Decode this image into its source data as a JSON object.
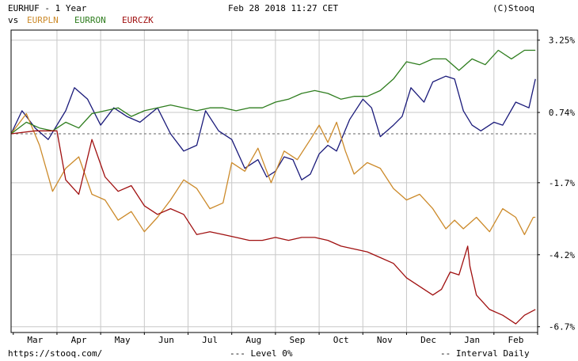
{
  "header": {
    "main_ticker": "EURHUF - 1 Year",
    "vs_label": "vs",
    "compare_tickers": [
      {
        "label": "EURPLN",
        "color": "#cc8a2a"
      },
      {
        "label": "EURRON",
        "color": "#2e7d1e"
      },
      {
        "label": "EURCZK",
        "color": "#a01010"
      }
    ],
    "datetime": "Feb 28 2018 11:27 CET",
    "copyright": "(C)Stooq"
  },
  "footer": {
    "url": "https://stooq.com/",
    "level_legend": "--- Level 0%",
    "interval_legend": "-- Interval Daily"
  },
  "chart_data": {
    "type": "line",
    "title": "EURHUF - 1 Year",
    "x_unit": "months (0 = start of Mar 2017)",
    "x_tick_labels": [
      "Mar",
      "Apr",
      "May",
      "Jun",
      "Jul",
      "Aug",
      "Sep",
      "Oct",
      "Nov",
      "Dec",
      "Jan",
      "Feb"
    ],
    "y_tick_labels": [
      "3.25%",
      "0.74%",
      "-1.7%",
      "-4.2%",
      "-6.7%"
    ],
    "y_ticks": [
      3.25,
      0.74,
      -1.7,
      -4.2,
      -6.7
    ],
    "ylim": [
      -6.9,
      3.6
    ],
    "xlim": [
      -0.05,
      12.0
    ],
    "zero_level": 0,
    "grid": true,
    "series": [
      {
        "name": "EURHUF",
        "color": "#1a1a7a",
        "points": [
          [
            -0.05,
            0
          ],
          [
            0.2,
            0.8
          ],
          [
            0.5,
            0.2
          ],
          [
            0.8,
            -0.2
          ],
          [
            1.2,
            0.8
          ],
          [
            1.4,
            1.6
          ],
          [
            1.7,
            1.2
          ],
          [
            2.0,
            0.3
          ],
          [
            2.3,
            0.9
          ],
          [
            2.6,
            0.6
          ],
          [
            2.9,
            0.4
          ],
          [
            3.3,
            0.9
          ],
          [
            3.6,
            0
          ],
          [
            3.9,
            -0.6
          ],
          [
            4.2,
            -0.4
          ],
          [
            4.4,
            0.8
          ],
          [
            4.7,
            0.1
          ],
          [
            5.0,
            -0.2
          ],
          [
            5.3,
            -1.2
          ],
          [
            5.6,
            -0.9
          ],
          [
            5.8,
            -1.5
          ],
          [
            6.0,
            -1.3
          ],
          [
            6.2,
            -0.8
          ],
          [
            6.4,
            -0.9
          ],
          [
            6.6,
            -1.6
          ],
          [
            6.8,
            -1.4
          ],
          [
            7.0,
            -0.7
          ],
          [
            7.2,
            -0.4
          ],
          [
            7.4,
            -0.6
          ],
          [
            7.7,
            0.5
          ],
          [
            8.0,
            1.2
          ],
          [
            8.2,
            0.9
          ],
          [
            8.4,
            -0.1
          ],
          [
            8.7,
            0.3
          ],
          [
            8.9,
            0.6
          ],
          [
            9.1,
            1.6
          ],
          [
            9.4,
            1.1
          ],
          [
            9.6,
            1.8
          ],
          [
            9.9,
            2.0
          ],
          [
            10.1,
            1.9
          ],
          [
            10.3,
            0.8
          ],
          [
            10.5,
            0.3
          ],
          [
            10.7,
            0.1
          ],
          [
            11.0,
            0.4
          ],
          [
            11.2,
            0.3
          ],
          [
            11.5,
            1.1
          ],
          [
            11.8,
            0.9
          ],
          [
            11.95,
            1.9
          ]
        ]
      },
      {
        "name": "EURPLN",
        "color": "#cc8a2a",
        "points": [
          [
            -0.05,
            0
          ],
          [
            0.3,
            0.7
          ],
          [
            0.6,
            -0.4
          ],
          [
            0.9,
            -2.0
          ],
          [
            1.2,
            -1.2
          ],
          [
            1.5,
            -0.8
          ],
          [
            1.8,
            -2.1
          ],
          [
            2.1,
            -2.3
          ],
          [
            2.4,
            -3.0
          ],
          [
            2.7,
            -2.7
          ],
          [
            3.0,
            -3.4
          ],
          [
            3.3,
            -2.9
          ],
          [
            3.6,
            -2.3
          ],
          [
            3.9,
            -1.6
          ],
          [
            4.2,
            -1.9
          ],
          [
            4.5,
            -2.6
          ],
          [
            4.8,
            -2.4
          ],
          [
            5.0,
            -1.0
          ],
          [
            5.3,
            -1.3
          ],
          [
            5.6,
            -0.5
          ],
          [
            5.9,
            -1.7
          ],
          [
            6.2,
            -0.6
          ],
          [
            6.5,
            -0.9
          ],
          [
            6.8,
            -0.2
          ],
          [
            7.0,
            0.3
          ],
          [
            7.2,
            -0.3
          ],
          [
            7.4,
            0.4
          ],
          [
            7.6,
            -0.6
          ],
          [
            7.8,
            -1.4
          ],
          [
            8.1,
            -1.0
          ],
          [
            8.4,
            -1.2
          ],
          [
            8.7,
            -1.9
          ],
          [
            9.0,
            -2.3
          ],
          [
            9.3,
            -2.1
          ],
          [
            9.6,
            -2.6
          ],
          [
            9.9,
            -3.3
          ],
          [
            10.1,
            -3.0
          ],
          [
            10.3,
            -3.3
          ],
          [
            10.6,
            -2.9
          ],
          [
            10.9,
            -3.4
          ],
          [
            11.2,
            -2.6
          ],
          [
            11.5,
            -2.9
          ],
          [
            11.7,
            -3.5
          ],
          [
            11.9,
            -2.9
          ],
          [
            11.95,
            -2.9
          ]
        ]
      },
      {
        "name": "EURRON",
        "color": "#2e7d1e",
        "points": [
          [
            -0.05,
            0
          ],
          [
            0.3,
            0.4
          ],
          [
            0.6,
            0.2
          ],
          [
            0.9,
            0.1
          ],
          [
            1.2,
            0.4
          ],
          [
            1.5,
            0.2
          ],
          [
            1.8,
            0.7
          ],
          [
            2.1,
            0.8
          ],
          [
            2.4,
            0.9
          ],
          [
            2.7,
            0.6
          ],
          [
            3.0,
            0.8
          ],
          [
            3.3,
            0.9
          ],
          [
            3.6,
            1.0
          ],
          [
            3.9,
            0.9
          ],
          [
            4.2,
            0.8
          ],
          [
            4.5,
            0.9
          ],
          [
            4.8,
            0.9
          ],
          [
            5.1,
            0.8
          ],
          [
            5.4,
            0.9
          ],
          [
            5.7,
            0.9
          ],
          [
            6.0,
            1.1
          ],
          [
            6.3,
            1.2
          ],
          [
            6.6,
            1.4
          ],
          [
            6.9,
            1.5
          ],
          [
            7.2,
            1.4
          ],
          [
            7.5,
            1.2
          ],
          [
            7.8,
            1.3
          ],
          [
            8.1,
            1.3
          ],
          [
            8.4,
            1.5
          ],
          [
            8.7,
            1.9
          ],
          [
            9.0,
            2.5
          ],
          [
            9.3,
            2.4
          ],
          [
            9.6,
            2.6
          ],
          [
            9.9,
            2.6
          ],
          [
            10.2,
            2.2
          ],
          [
            10.5,
            2.6
          ],
          [
            10.8,
            2.4
          ],
          [
            11.1,
            2.9
          ],
          [
            11.4,
            2.6
          ],
          [
            11.7,
            2.9
          ],
          [
            11.95,
            2.9
          ]
        ]
      },
      {
        "name": "EURCZK",
        "color": "#a01010",
        "points": [
          [
            -0.05,
            0
          ],
          [
            0.5,
            0.1
          ],
          [
            1.0,
            0.1
          ],
          [
            1.2,
            -1.6
          ],
          [
            1.5,
            -2.1
          ],
          [
            1.8,
            -0.2
          ],
          [
            2.1,
            -1.5
          ],
          [
            2.4,
            -2.0
          ],
          [
            2.7,
            -1.8
          ],
          [
            3.0,
            -2.5
          ],
          [
            3.3,
            -2.8
          ],
          [
            3.6,
            -2.6
          ],
          [
            3.9,
            -2.8
          ],
          [
            4.2,
            -3.5
          ],
          [
            4.5,
            -3.4
          ],
          [
            4.8,
            -3.5
          ],
          [
            5.1,
            -3.6
          ],
          [
            5.4,
            -3.7
          ],
          [
            5.7,
            -3.7
          ],
          [
            6.0,
            -3.6
          ],
          [
            6.3,
            -3.7
          ],
          [
            6.6,
            -3.6
          ],
          [
            6.9,
            -3.6
          ],
          [
            7.2,
            -3.7
          ],
          [
            7.5,
            -3.9
          ],
          [
            7.8,
            -4.0
          ],
          [
            8.1,
            -4.1
          ],
          [
            8.4,
            -4.3
          ],
          [
            8.7,
            -4.5
          ],
          [
            9.0,
            -5.0
          ],
          [
            9.3,
            -5.3
          ],
          [
            9.6,
            -5.6
          ],
          [
            9.8,
            -5.4
          ],
          [
            10.0,
            -4.8
          ],
          [
            10.2,
            -4.9
          ],
          [
            10.4,
            -3.9
          ],
          [
            10.45,
            -4.6
          ],
          [
            10.6,
            -5.6
          ],
          [
            10.9,
            -6.1
          ],
          [
            11.2,
            -6.3
          ],
          [
            11.5,
            -6.6
          ],
          [
            11.7,
            -6.3
          ],
          [
            11.95,
            -6.1
          ]
        ]
      }
    ]
  }
}
